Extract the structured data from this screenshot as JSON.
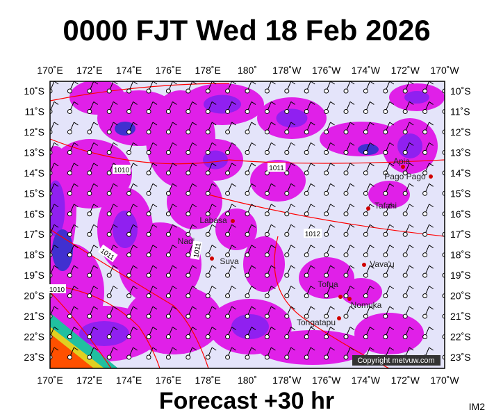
{
  "title": "0000 FJT Wed 18 Feb 2026",
  "lon_labels": [
    "170˚E",
    "172˚E",
    "174˚E",
    "176˚E",
    "178˚E",
    "180˚",
    "178˚W",
    "176˚W",
    "174˚W",
    "172˚W",
    "170˚W"
  ],
  "lat_labels": [
    "10˚S",
    "11˚S",
    "12˚S",
    "13˚S",
    "14˚S",
    "15˚S",
    "16˚S",
    "17˚S",
    "18˚S",
    "19˚S",
    "20˚S",
    "21˚S",
    "22˚S",
    "23˚S"
  ],
  "places": [
    "Apia",
    "Pago Pago",
    "Labasa",
    "Nadi",
    "Suva",
    "Tafahi",
    "Vava'u",
    "Tofua",
    "Nomuka",
    "Tongatapu"
  ],
  "isobar_labels": [
    "1010",
    "1011",
    "1011",
    "1012",
    "1011",
    "1010"
  ],
  "copyright": "Copyright metvuw.com",
  "footer": "Forecast +30 hr",
  "image_code": "IM2"
}
